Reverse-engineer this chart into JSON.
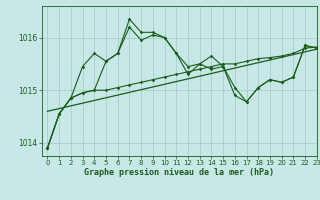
{
  "title": "Graphe pression niveau de la mer (hPa)",
  "bg_color": "#c8e8e8",
  "grid_color": "#a0c8c8",
  "line_color": "#1a5c1a",
  "xlim": [
    -0.5,
    23
  ],
  "ylim": [
    1013.75,
    1016.6
  ],
  "yticks": [
    1014,
    1015,
    1016
  ],
  "xticks": [
    0,
    1,
    2,
    3,
    4,
    5,
    6,
    7,
    8,
    9,
    10,
    11,
    12,
    13,
    14,
    15,
    16,
    17,
    18,
    19,
    20,
    21,
    22,
    23
  ],
  "series_main": {
    "x": [
      0,
      1,
      2,
      3,
      4,
      5,
      6,
      7,
      8,
      9,
      10,
      11,
      12,
      13,
      14,
      15,
      16,
      17,
      18,
      19,
      20,
      21,
      22,
      23
    ],
    "y": [
      1013.9,
      1014.55,
      1014.85,
      1015.45,
      1015.7,
      1015.55,
      1015.7,
      1016.35,
      1016.1,
      1016.1,
      1016.0,
      1015.7,
      1015.45,
      1015.5,
      1015.65,
      1015.45,
      1014.9,
      1014.78,
      1015.05,
      1015.2,
      1015.15,
      1015.25,
      1015.85,
      1015.8
    ]
  },
  "series_smooth": {
    "x": [
      0,
      1,
      2,
      3,
      4,
      5,
      6,
      7,
      8,
      9,
      10,
      11,
      12,
      13,
      14,
      15,
      16,
      17,
      18,
      19,
      20,
      21,
      22,
      23
    ],
    "y": [
      1013.9,
      1014.55,
      1014.85,
      1014.95,
      1015.0,
      1015.0,
      1015.05,
      1015.1,
      1015.15,
      1015.2,
      1015.25,
      1015.3,
      1015.35,
      1015.4,
      1015.45,
      1015.5,
      1015.5,
      1015.55,
      1015.6,
      1015.62,
      1015.65,
      1015.7,
      1015.8,
      1015.82
    ]
  },
  "series_mid": {
    "x": [
      0,
      1,
      2,
      3,
      4,
      5,
      6,
      7,
      8,
      9,
      10,
      11,
      12,
      13,
      14,
      15,
      16,
      17,
      18,
      19,
      20,
      21,
      22,
      23
    ],
    "y": [
      1013.9,
      1014.55,
      1014.85,
      1014.95,
      1015.0,
      1015.55,
      1015.7,
      1016.2,
      1015.95,
      1016.05,
      1016.0,
      1015.7,
      1015.3,
      1015.5,
      1015.4,
      1015.45,
      1015.05,
      1014.78,
      1015.05,
      1015.2,
      1015.15,
      1015.25,
      1015.85,
      1015.8
    ]
  },
  "trend_line": {
    "x": [
      0,
      23
    ],
    "y": [
      1014.6,
      1015.78
    ]
  },
  "figsize": [
    3.2,
    2.0
  ],
  "dpi": 100
}
